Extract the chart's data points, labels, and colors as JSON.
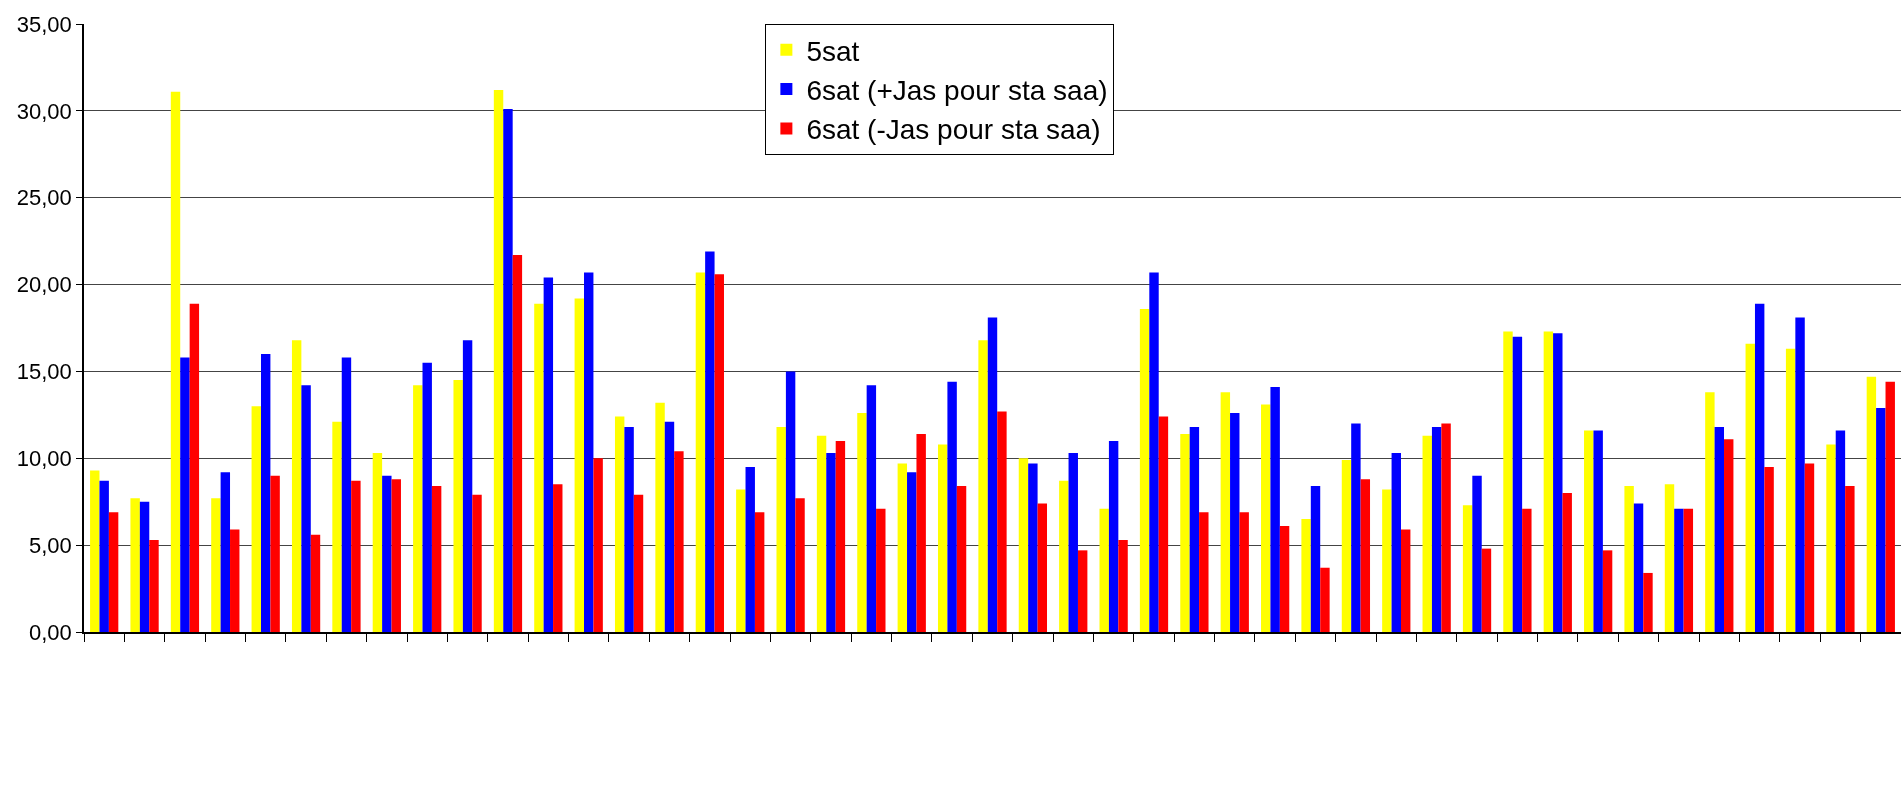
{
  "chart_data": {
    "type": "bar",
    "categories": [
      null,
      null,
      null,
      null,
      null,
      null,
      null,
      null,
      null,
      null,
      null,
      null,
      null,
      null,
      null,
      null,
      null,
      null,
      null,
      null,
      null,
      null,
      null,
      null,
      null,
      null,
      null,
      null,
      null,
      null,
      null,
      null,
      null,
      null,
      null,
      null,
      null,
      null,
      null,
      null,
      null,
      null,
      null,
      null,
      null
    ],
    "series": [
      {
        "name": "5sat",
        "color": "#ffff00",
        "values": [
          9.3,
          7.7,
          31.1,
          7.7,
          13.0,
          16.8,
          12.1,
          10.3,
          14.2,
          14.5,
          31.2,
          18.9,
          19.2,
          12.4,
          13.2,
          20.7,
          8.2,
          11.8,
          11.3,
          12.6,
          9.7,
          10.8,
          16.8,
          10.0,
          8.7,
          7.1,
          18.6,
          11.4,
          13.8,
          13.1,
          6.5,
          9.9,
          8.2,
          11.3,
          7.3,
          17.3,
          17.3,
          11.6,
          8.4,
          8.5,
          13.8,
          16.6,
          16.3,
          10.8,
          14.7
        ]
      },
      {
        "name": "6sat (+Jas pour sta saa)",
        "color": "#0000ff",
        "values": [
          8.7,
          7.5,
          15.8,
          9.2,
          16.0,
          14.2,
          15.8,
          9.0,
          15.5,
          16.8,
          30.1,
          20.4,
          20.7,
          11.8,
          12.1,
          21.9,
          9.5,
          15.0,
          10.3,
          14.2,
          9.2,
          14.4,
          18.1,
          9.7,
          10.3,
          11.0,
          20.7,
          11.8,
          12.6,
          14.1,
          8.4,
          12.0,
          10.3,
          11.8,
          9.0,
          17.0,
          17.2,
          11.6,
          7.4,
          7.1,
          11.8,
          18.9,
          18.1,
          11.6,
          12.9
        ]
      },
      {
        "name": "6sat (-Jas pour sta saa)",
        "color": "#ff0000",
        "values": [
          6.9,
          5.3,
          18.9,
          5.9,
          9.0,
          5.6,
          8.7,
          8.8,
          8.4,
          7.9,
          21.7,
          8.5,
          10.0,
          7.9,
          10.4,
          20.6,
          6.9,
          7.7,
          11.0,
          7.1,
          11.4,
          8.4,
          12.7,
          7.4,
          4.7,
          5.3,
          12.4,
          6.9,
          6.9,
          6.1,
          3.7,
          8.8,
          5.9,
          12.0,
          4.8,
          7.1,
          8.0,
          4.7,
          3.4,
          7.1,
          11.1,
          9.5,
          9.7,
          8.4,
          14.4
        ]
      }
    ],
    "ylim": [
      0,
      35
    ],
    "yticks": [
      {
        "value": 0,
        "label": "0,00"
      },
      {
        "value": 5,
        "label": "5,00"
      },
      {
        "value": 10,
        "label": "10,00"
      },
      {
        "value": 15,
        "label": "15,00"
      },
      {
        "value": 20,
        "label": "20,00"
      },
      {
        "value": 25,
        "label": "25,00"
      },
      {
        "value": 30,
        "label": "30,00"
      },
      {
        "value": 35,
        "label": "35,00"
      }
    ],
    "grid": "y",
    "legend": "top",
    "tick_labels": "y"
  }
}
